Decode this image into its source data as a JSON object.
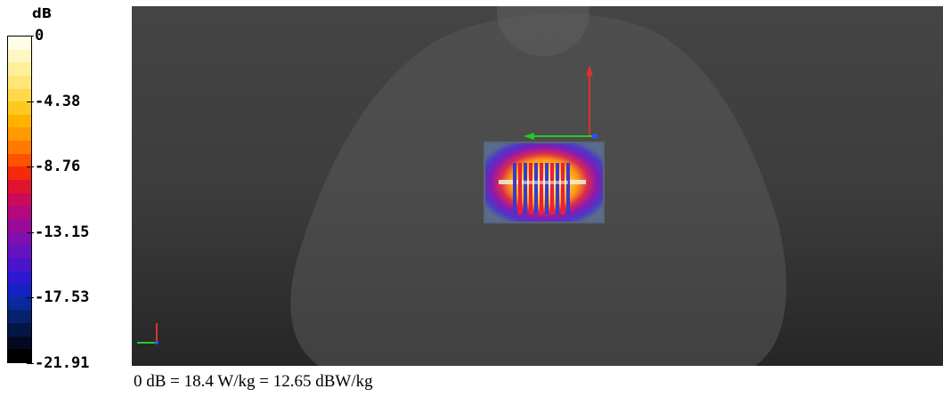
{
  "legend": {
    "unit": "dB",
    "tick_labels": [
      "0",
      "-4.38",
      "-8.76",
      "-13.15",
      "-17.53",
      "-21.91"
    ],
    "min_value": -21.91,
    "max_value": 0,
    "colors": [
      "#fffde6",
      "#fff6c2",
      "#ffef9a",
      "#ffe676",
      "#ffd94a",
      "#ffc820",
      "#ffb300",
      "#ff9a00",
      "#ff7a00",
      "#ff5200",
      "#f52a0c",
      "#e0142e",
      "#cc0a5a",
      "#b5087e",
      "#9a0a98",
      "#7f0fae",
      "#6612c0",
      "#4a14cc",
      "#2c18d0",
      "#1422c2",
      "#0a2a9a",
      "#06226e",
      "#041646",
      "#020a22",
      "#000000"
    ]
  },
  "caption": "0 dB = 18.4 W/kg = 12.65 dBW/kg",
  "viewport": {
    "background_top": "#444444",
    "background_bottom": "#262626",
    "phantom_color": "#575757",
    "axes_colors": {
      "x": "#22cc22",
      "y": "#2255ff",
      "z": "#e03030"
    }
  }
}
